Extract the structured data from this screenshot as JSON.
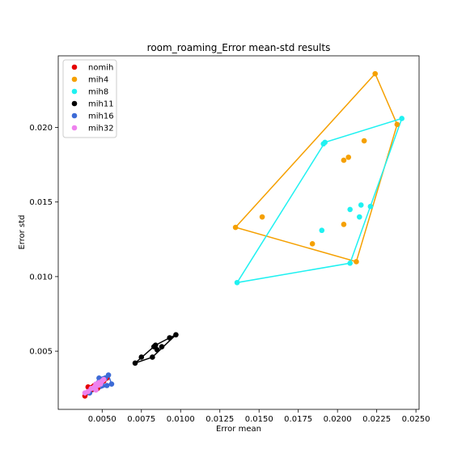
{
  "chart_data": {
    "type": "scatter",
    "title": "room_roaming_Error mean-std results",
    "xlabel": "Error mean",
    "ylabel": "Error std",
    "xlim": [
      0.0022,
      0.0252
    ],
    "ylim": [
      0.0011,
      0.0248
    ],
    "xticks": [
      0.005,
      0.0075,
      0.01,
      0.0125,
      0.015,
      0.0175,
      0.02,
      0.0225,
      0.025
    ],
    "xtick_labels": [
      "0.0050",
      "0.0075",
      "0.0100",
      "0.0125",
      "0.0150",
      "0.0175",
      "0.0200",
      "0.0225",
      "0.0250"
    ],
    "yticks": [
      0.005,
      0.01,
      0.015,
      0.02
    ],
    "ytick_labels": [
      "0.005",
      "0.010",
      "0.015",
      "0.020"
    ],
    "legend_position": "top-left",
    "series": [
      {
        "name": "nomih",
        "color": "#e50000",
        "points": [
          [
            0.0039,
            0.002
          ],
          [
            0.004,
            0.0022
          ],
          [
            0.0041,
            0.0026
          ],
          [
            0.0043,
            0.0024
          ],
          [
            0.0045,
            0.0027
          ],
          [
            0.0047,
            0.0028
          ],
          [
            0.0049,
            0.0029
          ],
          [
            0.0051,
            0.003
          ],
          [
            0.0053,
            0.0032
          ],
          [
            0.0047,
            0.0025
          ],
          [
            0.0044,
            0.0026
          ]
        ],
        "hull": [
          [
            0.0039,
            0.002
          ],
          [
            0.0053,
            0.0032
          ],
          [
            0.0041,
            0.0026
          ]
        ]
      },
      {
        "name": "mih4",
        "color": "#f5a000",
        "points": [
          [
            0.0224,
            0.0236
          ],
          [
            0.0238,
            0.0202
          ],
          [
            0.0217,
            0.0191
          ],
          [
            0.0207,
            0.018
          ],
          [
            0.0204,
            0.0178
          ],
          [
            0.0135,
            0.0133
          ],
          [
            0.0152,
            0.014
          ],
          [
            0.0204,
            0.0135
          ],
          [
            0.0184,
            0.0122
          ],
          [
            0.0212,
            0.011
          ]
        ],
        "hull": [
          [
            0.0135,
            0.0133
          ],
          [
            0.0224,
            0.0236
          ],
          [
            0.0238,
            0.0202
          ],
          [
            0.0212,
            0.011
          ]
        ]
      },
      {
        "name": "mih8",
        "color": "#1ff1f1",
        "points": [
          [
            0.0241,
            0.0206
          ],
          [
            0.0192,
            0.019
          ],
          [
            0.0191,
            0.0189
          ],
          [
            0.0208,
            0.0145
          ],
          [
            0.0215,
            0.0148
          ],
          [
            0.0221,
            0.0147
          ],
          [
            0.0214,
            0.014
          ],
          [
            0.019,
            0.0131
          ],
          [
            0.0208,
            0.0109
          ],
          [
            0.0136,
            0.0096
          ]
        ],
        "hull": [
          [
            0.0136,
            0.0096
          ],
          [
            0.0192,
            0.019
          ],
          [
            0.0241,
            0.0206
          ],
          [
            0.0208,
            0.0109
          ]
        ]
      },
      {
        "name": "mih11",
        "color": "#000000",
        "points": [
          [
            0.0071,
            0.0042
          ],
          [
            0.0075,
            0.0046
          ],
          [
            0.0082,
            0.0046
          ],
          [
            0.0083,
            0.0053
          ],
          [
            0.0084,
            0.0054
          ],
          [
            0.0085,
            0.0051
          ],
          [
            0.0088,
            0.0053
          ],
          [
            0.0093,
            0.0059
          ],
          [
            0.0097,
            0.0061
          ]
        ],
        "hull": [
          [
            0.0071,
            0.0042
          ],
          [
            0.0082,
            0.0046
          ],
          [
            0.0097,
            0.0061
          ],
          [
            0.0093,
            0.0059
          ],
          [
            0.0084,
            0.0054
          ]
        ]
      },
      {
        "name": "mih16",
        "color": "#3d6bd6",
        "points": [
          [
            0.0042,
            0.0022
          ],
          [
            0.0048,
            0.0032
          ],
          [
            0.005,
            0.0031
          ],
          [
            0.0052,
            0.0032
          ],
          [
            0.0054,
            0.0034
          ],
          [
            0.0056,
            0.0028
          ],
          [
            0.0053,
            0.0027
          ],
          [
            0.005,
            0.0027
          ],
          [
            0.0047,
            0.0028
          ],
          [
            0.0045,
            0.0025
          ]
        ],
        "hull": [
          [
            0.0042,
            0.0022
          ],
          [
            0.0048,
            0.0032
          ],
          [
            0.0054,
            0.0034
          ],
          [
            0.0056,
            0.0028
          ]
        ]
      },
      {
        "name": "mih32",
        "color": "#ee82ee",
        "points": [
          [
            0.0039,
            0.0022
          ],
          [
            0.0041,
            0.0023
          ],
          [
            0.0043,
            0.0025
          ],
          [
            0.0045,
            0.0026
          ],
          [
            0.0046,
            0.0028
          ],
          [
            0.0047,
            0.0027
          ],
          [
            0.0048,
            0.0029
          ],
          [
            0.0049,
            0.0028
          ],
          [
            0.005,
            0.003
          ],
          [
            0.0051,
            0.0031
          ],
          [
            0.0046,
            0.0024
          ]
        ],
        "hull": [
          [
            0.0039,
            0.0022
          ],
          [
            0.0051,
            0.0031
          ],
          [
            0.0046,
            0.0028
          ]
        ]
      }
    ]
  }
}
